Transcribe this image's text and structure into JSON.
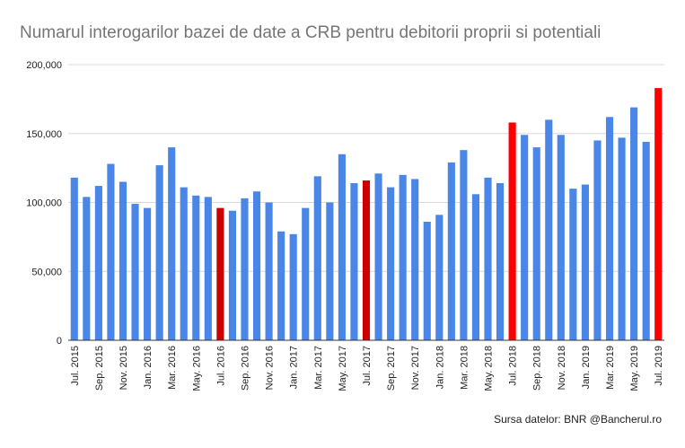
{
  "chart_data": {
    "type": "bar",
    "title": "Numarul interogarilor bazei de date a CRB pentru debitorii proprii si potentiali",
    "xlabel": "",
    "ylabel": "",
    "ylim": [
      0,
      200000
    ],
    "yticks": [
      {
        "value": 0,
        "label": "0"
      },
      {
        "value": 50000,
        "label": "50,000"
      },
      {
        "value": 100000,
        "label": "100,000"
      },
      {
        "value": 150000,
        "label": "150,000"
      },
      {
        "value": 200000,
        "label": "200,000"
      }
    ],
    "categories": [
      "Jul. 2015",
      "Aug. 2015",
      "Sep. 2015",
      "Oct. 2015",
      "Nov. 2015",
      "Dec. 2015",
      "Jan. 2016",
      "Feb. 2016",
      "Mar. 2016",
      "Apr. 2016",
      "May. 2016",
      "Jun. 2016",
      "Jul. 2016",
      "Aug. 2016",
      "Sep. 2016",
      "Oct. 2016",
      "Nov. 2016",
      "Dec. 2016",
      "Jan. 2017",
      "Feb. 2017",
      "Mar. 2017",
      "Apr. 2017",
      "May. 2017",
      "Jun. 2017",
      "Jul. 2017",
      "Aug. 2017",
      "Sep. 2017",
      "Oct. 2017",
      "Nov. 2017",
      "Dec. 2017",
      "Jan. 2018",
      "Feb. 2018",
      "Mar. 2018",
      "Apr. 2018",
      "May. 2018",
      "Jun. 2018",
      "Jul. 2018",
      "Aug. 2018",
      "Sep. 2018",
      "Oct. 2018",
      "Nov. 2018",
      "Dec. 2018",
      "Jan. 2019",
      "Feb. 2019",
      "Mar. 2019",
      "Apr. 2019",
      "May. 2019",
      "Jun. 2019",
      "Jul. 2019"
    ],
    "shown_tick_labels": [
      "Jul. 2015",
      "",
      "Sep. 2015",
      "",
      "Nov. 2015",
      "",
      "Jan. 2016",
      "",
      "Mar. 2016",
      "",
      "May. 2016",
      "",
      "Jul. 2016",
      "",
      "Sep. 2016",
      "",
      "Nov. 2016",
      "",
      "Jan. 2017",
      "",
      "Mar. 2017",
      "",
      "May. 2017",
      "",
      "Jul. 2017",
      "",
      "Sep. 2017",
      "",
      "Nov. 2017",
      "",
      "Jan. 2018",
      "",
      "Mar. 2018",
      "",
      "May. 2018",
      "",
      "Jul. 2018",
      "",
      "Sep. 2018",
      "",
      "Nov. 2018",
      "",
      "Jan. 2019",
      "",
      "Mar. 2019",
      "",
      "May. 2019",
      "",
      "Jul. 2019"
    ],
    "values": [
      118000,
      104000,
      112000,
      128000,
      115000,
      99000,
      96000,
      127000,
      140000,
      111000,
      105000,
      104000,
      96000,
      94000,
      103000,
      108000,
      100000,
      79000,
      77000,
      96000,
      119000,
      100000,
      135000,
      114000,
      116000,
      121000,
      111000,
      120000,
      117000,
      86000,
      91000,
      129000,
      138000,
      106000,
      118000,
      114000,
      158000,
      149000,
      140000,
      160000,
      149000,
      110000,
      113000,
      145000,
      162000,
      147000,
      169000,
      144000,
      183000
    ],
    "highlight_indices": [
      12,
      24,
      36,
      48
    ],
    "colors": {
      "bar": "#4a86e8",
      "highlight": "#ff0000",
      "highlight_dark": "#cc0000"
    },
    "grid": true,
    "legend": "none"
  },
  "footer": {
    "source": "Sursa datelor: BNR @Bancherul.ro"
  }
}
